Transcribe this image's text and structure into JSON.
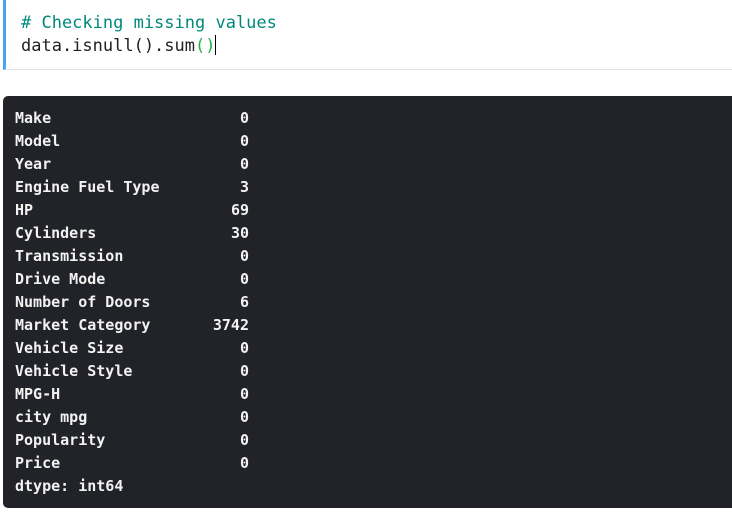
{
  "code_cell": {
    "comment": "# Checking missing values",
    "code_prefix": "data.isnull().sum",
    "code_parens": "()"
  },
  "output": {
    "rows": [
      {
        "label": "Make",
        "value": "0"
      },
      {
        "label": "Model",
        "value": "0"
      },
      {
        "label": "Year",
        "value": "0"
      },
      {
        "label": "Engine Fuel Type",
        "value": "3"
      },
      {
        "label": "HP",
        "value": "69"
      },
      {
        "label": "Cylinders",
        "value": "30"
      },
      {
        "label": "Transmission",
        "value": "0"
      },
      {
        "label": "Drive Mode",
        "value": "0"
      },
      {
        "label": "Number of Doors",
        "value": "6"
      },
      {
        "label": "Market Category",
        "value": "3742"
      },
      {
        "label": "Vehicle Size",
        "value": "0"
      },
      {
        "label": "Vehicle Style",
        "value": "0"
      },
      {
        "label": "MPG-H",
        "value": "0"
      },
      {
        "label": "city mpg",
        "value": "0"
      },
      {
        "label": "Popularity",
        "value": "0"
      },
      {
        "label": "Price",
        "value": "0"
      }
    ],
    "dtype": "dtype: int64"
  }
}
